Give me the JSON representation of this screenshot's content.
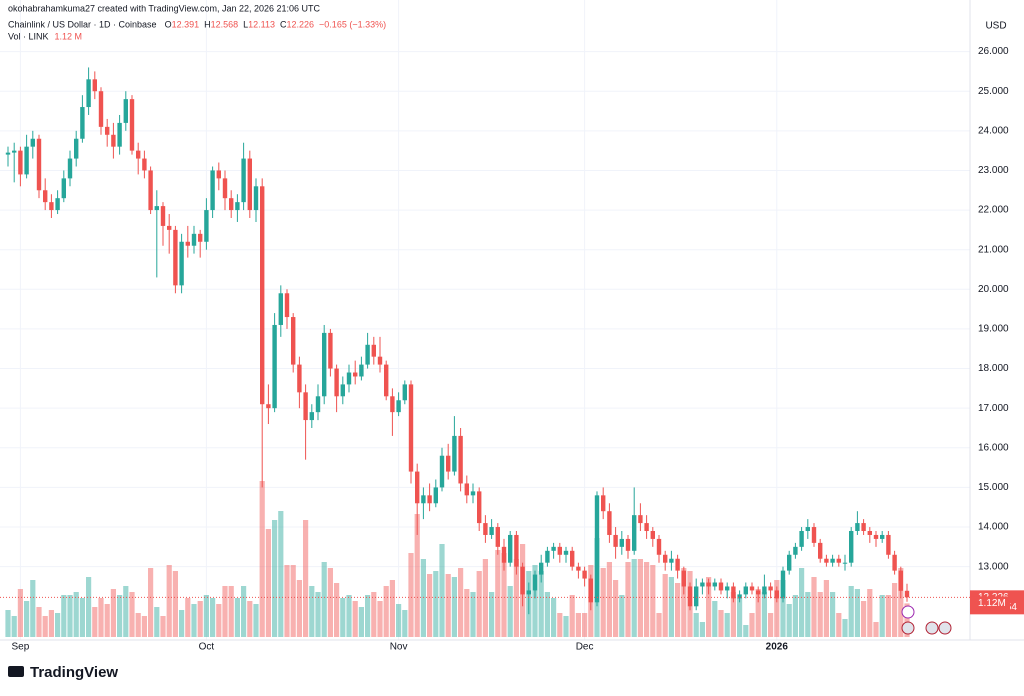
{
  "header": {
    "credit": "okohabrahamkuma27 created with TradingView.com, Jan 22, 2026 21:06 UTC",
    "logo": "TradingView"
  },
  "chart_data": {
    "type": "candlestick",
    "title": "Chainlink / US Dollar · 1D · Coinbase",
    "currency": "USD",
    "legend": {
      "ohlc_names": [
        "O",
        "H",
        "L",
        "C"
      ],
      "change": "−0.165 (−1.33%)",
      "volume_name": "Vol · LINK",
      "volume": "1.12 M"
    },
    "countdown": "02:53:54",
    "last_volume_label": "1.12M",
    "up_color": "#26a69a",
    "down_color": "#ef5350",
    "ylim": [
      11.25,
      27.1
    ],
    "yticks": [
      {
        "value": 13,
        "label": "13.000"
      },
      {
        "value": 14,
        "label": "14.000"
      },
      {
        "value": 15,
        "label": "15.000"
      },
      {
        "value": 16,
        "label": "16.000"
      },
      {
        "value": 17,
        "label": "17.000"
      },
      {
        "value": 18,
        "label": "18.000"
      },
      {
        "value": 19,
        "label": "19.000"
      },
      {
        "value": 20,
        "label": "20.000"
      },
      {
        "value": 21,
        "label": "21.000"
      },
      {
        "value": 22,
        "label": "22.000"
      },
      {
        "value": 23,
        "label": "23.000"
      },
      {
        "value": 24,
        "label": "24.000"
      },
      {
        "value": 25,
        "label": "25.000"
      },
      {
        "value": 26,
        "label": "26.000"
      }
    ],
    "xticks": [
      {
        "value": 2,
        "label": "Sep"
      },
      {
        "value": 32,
        "label": "Oct"
      },
      {
        "value": 63,
        "label": "Nov"
      },
      {
        "value": 93,
        "label": "Dec"
      },
      {
        "value": 124,
        "label": "2026"
      }
    ],
    "grid": true,
    "ohlc": [
      [
        23.4,
        23.6,
        23.1,
        23.45
      ],
      [
        23.45,
        23.7,
        22.7,
        23.5
      ],
      [
        23.5,
        23.6,
        22.6,
        22.9
      ],
      [
        22.9,
        23.9,
        22.8,
        23.6
      ],
      [
        23.6,
        24.0,
        23.3,
        23.8
      ],
      [
        23.8,
        23.9,
        22.3,
        22.5
      ],
      [
        22.5,
        22.8,
        22.0,
        22.2
      ],
      [
        22.2,
        22.4,
        21.8,
        22.0
      ],
      [
        22.0,
        22.5,
        21.9,
        22.3
      ],
      [
        22.3,
        23.0,
        22.2,
        22.8
      ],
      [
        22.8,
        23.5,
        22.6,
        23.3
      ],
      [
        23.3,
        24.0,
        23.1,
        23.8
      ],
      [
        23.8,
        24.9,
        23.7,
        24.6
      ],
      [
        24.6,
        25.6,
        24.4,
        25.3
      ],
      [
        25.3,
        25.5,
        24.8,
        25.0
      ],
      [
        25.0,
        25.1,
        23.9,
        24.1
      ],
      [
        24.1,
        24.3,
        23.6,
        23.9
      ],
      [
        23.9,
        24.2,
        23.3,
        23.6
      ],
      [
        23.6,
        24.4,
        23.4,
        24.2
      ],
      [
        24.2,
        25.0,
        24.0,
        24.8
      ],
      [
        24.8,
        24.9,
        23.4,
        23.5
      ],
      [
        23.5,
        23.7,
        22.9,
        23.3
      ],
      [
        23.3,
        23.5,
        22.8,
        23.0
      ],
      [
        23.0,
        23.1,
        21.9,
        22.0
      ],
      [
        22.0,
        22.5,
        20.3,
        22.1
      ],
      [
        22.1,
        22.2,
        21.1,
        21.6
      ],
      [
        21.6,
        21.9,
        20.9,
        21.5
      ],
      [
        21.5,
        21.6,
        19.9,
        20.1
      ],
      [
        20.1,
        21.4,
        19.9,
        21.2
      ],
      [
        21.2,
        21.6,
        20.8,
        21.1
      ],
      [
        21.1,
        21.6,
        20.9,
        21.4
      ],
      [
        21.4,
        21.5,
        20.8,
        21.2
      ],
      [
        21.2,
        22.3,
        21.0,
        22.0
      ],
      [
        22.0,
        23.1,
        21.8,
        23.0
      ],
      [
        23.0,
        23.2,
        22.5,
        22.8
      ],
      [
        22.8,
        23.0,
        22.0,
        22.3
      ],
      [
        22.3,
        22.5,
        21.8,
        22.0
      ],
      [
        22.0,
        22.4,
        21.7,
        22.2
      ],
      [
        22.2,
        23.7,
        22.0,
        23.3
      ],
      [
        23.3,
        23.5,
        21.8,
        22.0
      ],
      [
        22.0,
        22.8,
        21.7,
        22.6
      ],
      [
        22.6,
        22.8,
        15.0,
        17.1
      ],
      [
        17.1,
        17.6,
        16.6,
        17.0
      ],
      [
        17.0,
        19.4,
        16.9,
        19.1
      ],
      [
        19.1,
        20.1,
        18.8,
        19.9
      ],
      [
        19.9,
        20.0,
        19.0,
        19.3
      ],
      [
        19.3,
        19.4,
        17.9,
        18.1
      ],
      [
        18.1,
        18.3,
        17.0,
        17.4
      ],
      [
        17.4,
        17.6,
        15.7,
        16.7
      ],
      [
        16.7,
        17.1,
        16.5,
        16.9
      ],
      [
        16.9,
        17.6,
        16.7,
        17.3
      ],
      [
        17.3,
        19.1,
        17.1,
        18.9
      ],
      [
        18.9,
        19.0,
        17.8,
        18.0
      ],
      [
        18.0,
        18.1,
        16.9,
        17.3
      ],
      [
        17.3,
        17.8,
        17.1,
        17.6
      ],
      [
        17.6,
        18.1,
        17.4,
        17.9
      ],
      [
        17.9,
        18.2,
        17.6,
        17.8
      ],
      [
        17.8,
        18.3,
        17.7,
        18.1
      ],
      [
        18.1,
        18.9,
        18.0,
        18.6
      ],
      [
        18.6,
        18.8,
        18.1,
        18.3
      ],
      [
        18.3,
        18.8,
        17.9,
        18.1
      ],
      [
        18.1,
        18.2,
        17.2,
        17.3
      ],
      [
        17.3,
        17.5,
        16.3,
        16.9
      ],
      [
        16.9,
        17.4,
        16.8,
        17.2
      ],
      [
        17.2,
        17.7,
        17.1,
        17.6
      ],
      [
        17.6,
        17.7,
        15.1,
        15.4
      ],
      [
        15.4,
        15.6,
        13.8,
        14.6
      ],
      [
        14.6,
        15.0,
        14.2,
        14.8
      ],
      [
        14.8,
        15.1,
        14.4,
        14.6
      ],
      [
        14.6,
        15.2,
        14.5,
        15.0
      ],
      [
        15.0,
        16.0,
        14.9,
        15.8
      ],
      [
        15.8,
        16.1,
        15.2,
        15.4
      ],
      [
        15.4,
        16.8,
        15.3,
        16.3
      ],
      [
        16.3,
        16.5,
        14.9,
        15.1
      ],
      [
        15.1,
        15.3,
        14.6,
        14.8
      ],
      [
        14.8,
        15.1,
        14.6,
        14.9
      ],
      [
        14.9,
        15.0,
        13.9,
        14.1
      ],
      [
        14.1,
        14.3,
        13.6,
        13.8
      ],
      [
        13.8,
        14.2,
        13.7,
        14.0
      ],
      [
        14.0,
        14.1,
        13.3,
        13.5
      ],
      [
        13.5,
        13.7,
        12.9,
        13.1
      ],
      [
        13.1,
        13.9,
        13.0,
        13.8
      ],
      [
        13.8,
        13.9,
        12.8,
        13.0
      ],
      [
        13.0,
        13.1,
        12.0,
        12.3
      ],
      [
        12.3,
        12.6,
        11.8,
        12.4
      ],
      [
        12.4,
        12.9,
        12.2,
        12.8
      ],
      [
        12.8,
        13.3,
        12.6,
        13.1
      ],
      [
        13.1,
        13.5,
        13.0,
        13.4
      ],
      [
        13.4,
        13.6,
        13.2,
        13.5
      ],
      [
        13.5,
        13.6,
        13.1,
        13.3
      ],
      [
        13.3,
        13.5,
        13.1,
        13.4
      ],
      [
        13.4,
        13.5,
        12.9,
        13.0
      ],
      [
        13.0,
        13.1,
        12.7,
        12.9
      ],
      [
        12.9,
        13.0,
        12.5,
        12.7
      ],
      [
        12.7,
        12.8,
        11.9,
        12.1
      ],
      [
        12.1,
        14.9,
        12.0,
        14.8
      ],
      [
        14.8,
        15.0,
        14.2,
        14.4
      ],
      [
        14.4,
        14.6,
        13.6,
        13.8
      ],
      [
        13.8,
        14.0,
        13.2,
        13.5
      ],
      [
        13.5,
        13.9,
        13.3,
        13.7
      ],
      [
        13.7,
        13.8,
        13.2,
        13.4
      ],
      [
        13.4,
        15.0,
        13.3,
        14.3
      ],
      [
        14.3,
        14.6,
        13.9,
        14.1
      ],
      [
        14.1,
        14.3,
        13.7,
        13.9
      ],
      [
        13.9,
        14.0,
        13.5,
        13.7
      ],
      [
        13.7,
        13.8,
        13.1,
        13.3
      ],
      [
        13.3,
        13.4,
        12.9,
        13.1
      ],
      [
        13.1,
        13.4,
        12.9,
        13.2
      ],
      [
        13.2,
        13.3,
        12.7,
        12.9
      ],
      [
        12.9,
        13.0,
        12.3,
        12.5
      ],
      [
        12.5,
        12.6,
        11.9,
        12.0
      ],
      [
        12.0,
        12.7,
        11.9,
        12.5
      ],
      [
        12.5,
        12.7,
        12.3,
        12.6
      ],
      [
        12.6,
        12.7,
        12.3,
        12.5
      ],
      [
        12.5,
        12.7,
        12.4,
        12.6
      ],
      [
        12.6,
        12.7,
        12.3,
        12.4
      ],
      [
        12.4,
        12.6,
        12.2,
        12.5
      ],
      [
        12.5,
        12.6,
        12.1,
        12.2
      ],
      [
        12.2,
        12.4,
        12.1,
        12.3
      ],
      [
        12.3,
        12.6,
        12.2,
        12.5
      ],
      [
        12.5,
        12.6,
        12.3,
        12.4
      ],
      [
        12.4,
        12.5,
        12.1,
        12.3
      ],
      [
        12.3,
        12.8,
        12.2,
        12.5
      ],
      [
        12.5,
        12.6,
        12.2,
        12.4
      ],
      [
        12.4,
        12.5,
        12.1,
        12.2
      ],
      [
        12.2,
        13.0,
        12.1,
        12.9
      ],
      [
        12.9,
        13.4,
        12.8,
        13.3
      ],
      [
        13.3,
        13.6,
        13.2,
        13.5
      ],
      [
        13.5,
        14.0,
        13.4,
        13.9
      ],
      [
        13.9,
        14.2,
        13.7,
        14.0
      ],
      [
        14.0,
        14.1,
        13.5,
        13.6
      ],
      [
        13.6,
        13.7,
        13.1,
        13.2
      ],
      [
        13.2,
        13.3,
        13.0,
        13.1
      ],
      [
        13.1,
        13.3,
        13.0,
        13.2
      ],
      [
        13.2,
        13.3,
        13.0,
        13.1
      ],
      [
        13.1,
        13.3,
        12.9,
        13.1
      ],
      [
        13.1,
        14.0,
        13.0,
        13.9
      ],
      [
        13.9,
        14.4,
        13.8,
        14.1
      ],
      [
        14.1,
        14.2,
        13.8,
        13.9
      ],
      [
        13.9,
        14.0,
        13.6,
        13.8
      ],
      [
        13.8,
        13.9,
        13.5,
        13.7
      ],
      [
        13.7,
        13.9,
        13.6,
        13.8
      ],
      [
        13.8,
        13.9,
        13.2,
        13.3
      ],
      [
        13.3,
        13.4,
        12.8,
        12.9
      ],
      [
        12.9,
        13.0,
        12.2,
        12.391
      ],
      [
        12.391,
        12.568,
        12.113,
        12.226
      ]
    ],
    "volume": [
      0.9,
      0.7,
      1.6,
      1.2,
      1.9,
      1.0,
      0.7,
      0.9,
      0.8,
      1.4,
      1.4,
      1.5,
      1.3,
      2.0,
      1.0,
      1.3,
      1.1,
      1.6,
      1.4,
      1.7,
      1.5,
      0.8,
      0.7,
      2.3,
      1.0,
      0.7,
      2.4,
      2.2,
      0.9,
      1.3,
      1.1,
      1.2,
      1.4,
      1.3,
      1.1,
      1.7,
      1.7,
      1.3,
      1.7,
      1.2,
      1.1,
      5.2,
      3.6,
      3.9,
      4.2,
      2.4,
      2.4,
      1.9,
      3.9,
      1.7,
      1.5,
      2.5,
      2.3,
      1.8,
      1.3,
      1.4,
      1.2,
      1.0,
      1.4,
      1.5,
      1.2,
      1.7,
      1.9,
      1.1,
      0.9,
      2.8,
      4.1,
      2.6,
      2.1,
      2.2,
      3.1,
      2.1,
      2.0,
      2.3,
      1.6,
      1.5,
      2.2,
      2.6,
      1.5,
      2.9,
      2.8,
      1.7,
      2.6,
      3.1,
      2.2,
      2.4,
      2.2,
      1.5,
      1.3,
      0.8,
      0.7,
      1.4,
      0.8,
      0.8,
      2.4,
      3.3,
      2.3,
      2.5,
      1.9,
      1.4,
      2.5,
      2.6,
      2.6,
      2.5,
      2.4,
      0.8,
      2.1,
      2.0,
      1.8,
      2.3,
      2.2,
      0.8,
      0.5,
      2.0,
      1.2,
      0.9,
      0.8,
      1.5,
      1.3,
      0.4,
      0.8,
      1.6,
      1.5,
      0.8,
      1.9,
      1.9,
      1.1,
      1.4,
      2.3,
      1.5,
      2.0,
      1.5,
      1.9,
      1.5,
      0.8,
      0.6,
      1.7,
      1.6,
      1.2,
      1.6,
      0.5,
      1.4,
      1.4,
      1.8,
      2.3,
      1.12
    ]
  }
}
